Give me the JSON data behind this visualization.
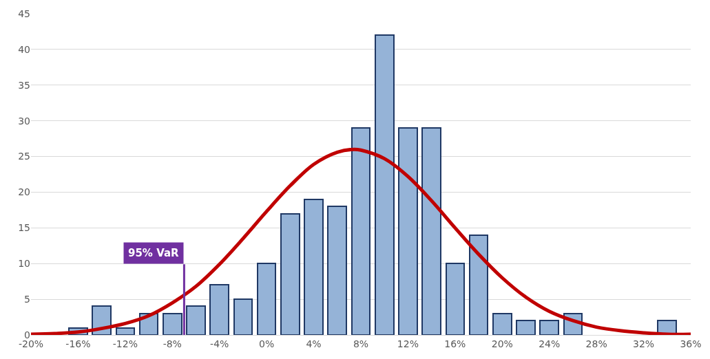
{
  "chart_data": {
    "type": "histogram",
    "bins": [
      -17,
      -15,
      -13,
      -11,
      -9,
      -7,
      -5,
      -3,
      -1,
      1,
      3,
      5,
      7,
      9,
      11,
      13,
      15,
      17,
      19,
      21,
      23,
      25,
      27,
      29,
      31,
      33,
      35
    ],
    "values": [
      1,
      4,
      1,
      3,
      3,
      4,
      7,
      5,
      10,
      17,
      19,
      18,
      29,
      42,
      29,
      29,
      10,
      14,
      3,
      2,
      2,
      3,
      0,
      0,
      0,
      2
    ],
    "color": "#95b3d7",
    "series": [
      {
        "type": "line",
        "color": "#c00000",
        "x": [
          -20,
          -18,
          -16,
          -14,
          -12,
          -10,
          -8,
          -6,
          -4,
          -2,
          0,
          2,
          4,
          6,
          7.4,
          8,
          10,
          12,
          14,
          16,
          18,
          20,
          22,
          24,
          26,
          28,
          30,
          32,
          34,
          36
        ],
        "values": [
          0.1,
          0.2,
          0.4,
          0.9,
          1.6,
          2.7,
          4.5,
          6.8,
          9.9,
          13.5,
          17.3,
          20.9,
          23.9,
          25.6,
          26,
          25.9,
          24.7,
          22.2,
          18.8,
          15.0,
          11.3,
          8.0,
          5.3,
          3.3,
          2.0,
          1.1,
          0.6,
          0.3,
          0.1,
          0.1
        ]
      }
    ],
    "xlim": [
      -20,
      36
    ],
    "xticks": [
      {
        "value": -20,
        "label": "-20%"
      },
      {
        "value": -16,
        "label": "-16%"
      },
      {
        "value": -12,
        "label": "-12%"
      },
      {
        "value": -8,
        "label": "-8%"
      },
      {
        "value": -4,
        "label": "-4%"
      },
      {
        "value": 0,
        "label": "0%"
      },
      {
        "value": 4,
        "label": "4%"
      },
      {
        "value": 8,
        "label": "8%"
      },
      {
        "value": 12,
        "label": "12%"
      },
      {
        "value": 16,
        "label": "16%"
      },
      {
        "value": 20,
        "label": "20%"
      },
      {
        "value": 24,
        "label": "24%"
      },
      {
        "value": 28,
        "label": "28%"
      },
      {
        "value": 32,
        "label": "32%"
      },
      {
        "value": 36,
        "label": "36%"
      }
    ],
    "ylim": [
      0,
      45
    ],
    "yticks": [
      0,
      5,
      10,
      15,
      20,
      25,
      30,
      35,
      40,
      45
    ],
    "grid": "y",
    "ref_lines": [
      {
        "axis": "x",
        "value": -7,
        "label": "95% VaR",
        "color": "#7030a0"
      }
    ]
  }
}
